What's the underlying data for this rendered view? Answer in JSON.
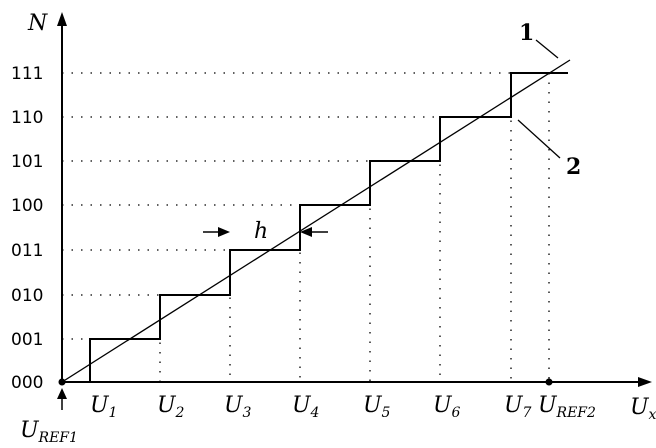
{
  "axes": {
    "y_label": "N",
    "x_label_main": "U",
    "x_label_sub": "x",
    "ref1_main": "U",
    "ref1_sub": "REF1",
    "ref2_main": "U",
    "ref2_sub": "REF2"
  },
  "codes": [
    "000",
    "001",
    "010",
    "011",
    "100",
    "101",
    "110",
    "111"
  ],
  "thresholds": [
    {
      "main": "U",
      "sub": "1"
    },
    {
      "main": "U",
      "sub": "2"
    },
    {
      "main": "U",
      "sub": "3"
    },
    {
      "main": "U",
      "sub": "4"
    },
    {
      "main": "U",
      "sub": "5"
    },
    {
      "main": "U",
      "sub": "6"
    },
    {
      "main": "U",
      "sub": "7"
    }
  ],
  "annotations": {
    "line_marker": "1",
    "staircase_marker": "2",
    "step_width": "h"
  }
}
